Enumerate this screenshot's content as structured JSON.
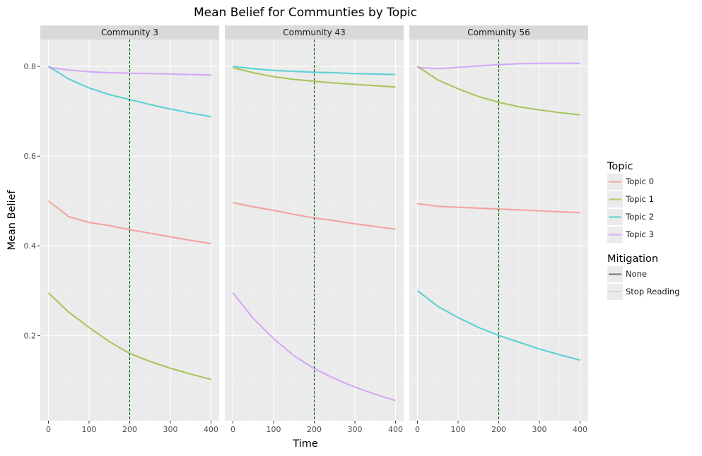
{
  "chart_data": {
    "type": "line",
    "title": "Mean Belief for Communties by Topic",
    "xlabel": "Time",
    "ylabel": "Mean Belief",
    "xlim": [
      -20,
      420
    ],
    "ylim": [
      0.01,
      0.86
    ],
    "x_ticks": [
      0,
      100,
      200,
      300,
      400
    ],
    "y_ticks": [
      0.2,
      0.4,
      0.6,
      0.8
    ],
    "vline_x": 200,
    "vline_color": "#006400",
    "grid": true,
    "legend_position": "right",
    "legends": [
      {
        "title": "Topic",
        "entries": [
          {
            "label": "Topic 0",
            "color": "#F8766D"
          },
          {
            "label": "Topic 1",
            "color": "#7CAE00"
          },
          {
            "label": "Topic 2",
            "color": "#00BFC4"
          },
          {
            "label": "Topic 3",
            "color": "#C77CFF"
          }
        ]
      },
      {
        "title": "Mitigation",
        "entries": [
          {
            "label": "None",
            "style": "solid"
          },
          {
            "label": "Stop Reading",
            "style": "dashed"
          }
        ]
      }
    ],
    "panels": [
      {
        "name": "Community 3",
        "series": [
          {
            "topic": "Topic 0",
            "x": [
              0,
              50,
              100,
              150,
              200,
              250,
              300,
              350,
              400
            ],
            "y": [
              0.5,
              0.465,
              0.452,
              0.445,
              0.436,
              0.428,
              0.42,
              0.412,
              0.405
            ]
          },
          {
            "topic": "Topic 1",
            "x": [
              0,
              50,
              100,
              150,
              200,
              250,
              300,
              350,
              400
            ],
            "y": [
              0.295,
              0.252,
              0.218,
              0.186,
              0.16,
              0.142,
              0.127,
              0.114,
              0.102
            ]
          },
          {
            "topic": "Topic 2",
            "x": [
              0,
              50,
              100,
              150,
              200,
              250,
              300,
              350,
              400
            ],
            "y": [
              0.8,
              0.772,
              0.752,
              0.737,
              0.726,
              0.715,
              0.705,
              0.696,
              0.688
            ]
          },
          {
            "topic": "Topic 3",
            "x": [
              0,
              50,
              100,
              150,
              200,
              250,
              300,
              350,
              400
            ],
            "y": [
              0.798,
              0.792,
              0.788,
              0.786,
              0.785,
              0.784,
              0.783,
              0.782,
              0.781
            ]
          }
        ]
      },
      {
        "name": "Community 43",
        "series": [
          {
            "topic": "Topic 0",
            "x": [
              0,
              50,
              100,
              150,
              200,
              250,
              300,
              350,
              400
            ],
            "y": [
              0.496,
              0.487,
              0.479,
              0.47,
              0.462,
              0.456,
              0.449,
              0.443,
              0.437
            ]
          },
          {
            "topic": "Topic 1",
            "x": [
              0,
              50,
              100,
              150,
              200,
              250,
              300,
              350,
              400
            ],
            "y": [
              0.797,
              0.786,
              0.777,
              0.771,
              0.767,
              0.763,
              0.76,
              0.757,
              0.754
            ]
          },
          {
            "topic": "Topic 2",
            "x": [
              0,
              50,
              100,
              150,
              200,
              250,
              300,
              350,
              400
            ],
            "y": [
              0.8,
              0.795,
              0.791,
              0.789,
              0.787,
              0.786,
              0.784,
              0.783,
              0.782
            ]
          },
          {
            "topic": "Topic 3",
            "x": [
              0,
              50,
              100,
              150,
              200,
              250,
              300,
              350,
              400
            ],
            "y": [
              0.295,
              0.238,
              0.193,
              0.155,
              0.126,
              0.104,
              0.085,
              0.069,
              0.055
            ]
          }
        ]
      },
      {
        "name": "Community 56",
        "series": [
          {
            "topic": "Topic 0",
            "x": [
              0,
              50,
              100,
              150,
              200,
              250,
              300,
              350,
              400
            ],
            "y": [
              0.494,
              0.488,
              0.486,
              0.484,
              0.482,
              0.48,
              0.478,
              0.476,
              0.474
            ]
          },
          {
            "topic": "Topic 1",
            "x": [
              0,
              50,
              100,
              150,
              200,
              250,
              300,
              350,
              400
            ],
            "y": [
              0.8,
              0.77,
              0.75,
              0.733,
              0.72,
              0.71,
              0.703,
              0.697,
              0.692
            ]
          },
          {
            "topic": "Topic 2",
            "x": [
              0,
              50,
              100,
              150,
              200,
              250,
              300,
              350,
              400
            ],
            "y": [
              0.3,
              0.265,
              0.24,
              0.218,
              0.2,
              0.185,
              0.17,
              0.157,
              0.145
            ]
          },
          {
            "topic": "Topic 3",
            "x": [
              0,
              50,
              100,
              150,
              200,
              250,
              300,
              350,
              400
            ],
            "y": [
              0.798,
              0.795,
              0.798,
              0.801,
              0.804,
              0.806,
              0.807,
              0.807,
              0.807
            ]
          }
        ]
      }
    ]
  }
}
